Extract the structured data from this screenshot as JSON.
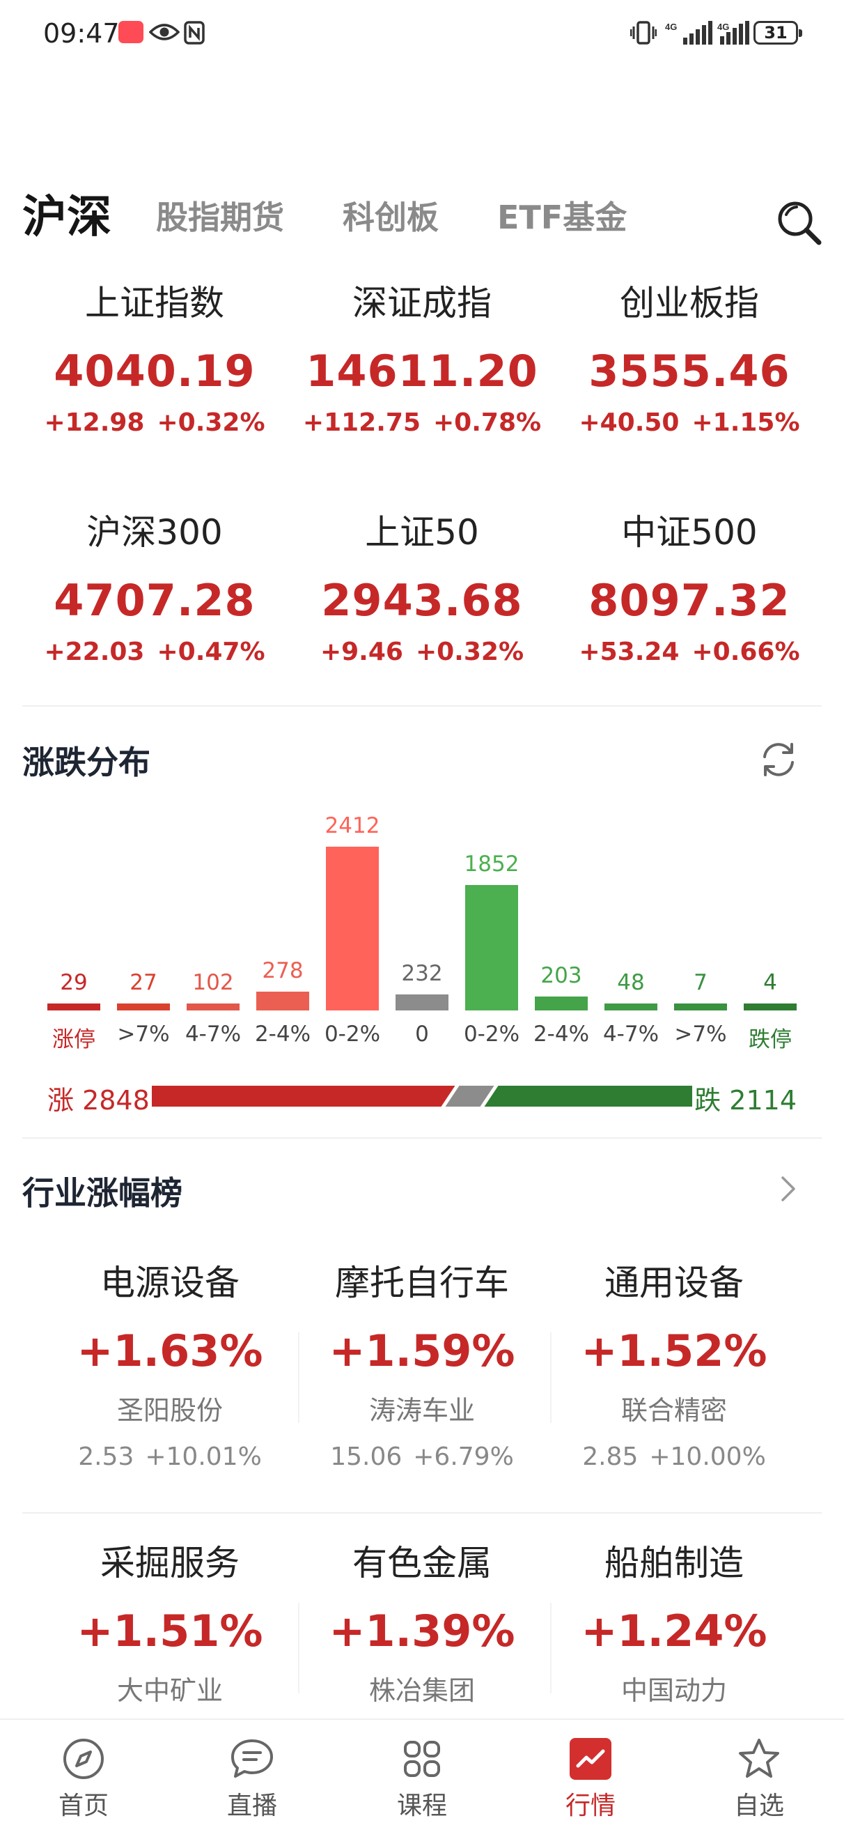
{
  "status_bar": {
    "time": "09:47",
    "battery": "31"
  },
  "tabs": [
    {
      "label": "沪深",
      "active": true
    },
    {
      "label": "股指期货"
    },
    {
      "label": "科创板"
    },
    {
      "label": "ETF基金"
    }
  ],
  "indices": [
    {
      "name": "上证指数",
      "value": "4040.19",
      "change": "+12.98",
      "pct": "+0.32%"
    },
    {
      "name": "深证成指",
      "value": "14611.20",
      "change": "+112.75",
      "pct": "+0.78%"
    },
    {
      "name": "创业板指",
      "value": "3555.46",
      "change": "+40.50",
      "pct": "+1.15%"
    },
    {
      "name": "沪深300",
      "value": "4707.28",
      "change": "+22.03",
      "pct": "+0.47%"
    },
    {
      "name": "上证50",
      "value": "2943.68",
      "change": "+9.46",
      "pct": "+0.32%"
    },
    {
      "name": "中证500",
      "value": "8097.32",
      "change": "+53.24",
      "pct": "+0.66%"
    }
  ],
  "distribution": {
    "title": "涨跌分布",
    "up_label": "涨 2848",
    "down_label": "跌 2114",
    "up_total": 2848,
    "down_total": 2114,
    "flat_total": 232
  },
  "chart_data": {
    "type": "bar",
    "categories": [
      "涨停",
      ">7%",
      "4-7%",
      "2-4%",
      "0-2%",
      "0",
      "0-2%",
      "2-4%",
      "4-7%",
      ">7%",
      "跌停"
    ],
    "values": [
      29,
      27,
      102,
      278,
      2412,
      232,
      1852,
      203,
      48,
      7,
      4
    ],
    "bar_colors": [
      "#c62828",
      "#d9412f",
      "#e2574a",
      "#eb5f52",
      "#ff6359",
      "#8c8c8c",
      "#4caf50",
      "#45a44a",
      "#3f9b45",
      "#3a9140",
      "#2e7d32"
    ],
    "label_colors": [
      "#c62828",
      "#444444",
      "#444444",
      "#444444",
      "#444444",
      "#444444",
      "#444444",
      "#444444",
      "#444444",
      "#444444",
      "#2e7d32"
    ]
  },
  "industry": {
    "title": "行业涨幅榜",
    "items": [
      {
        "name": "电源设备",
        "pct": "+1.63%",
        "stock": "圣阳股份",
        "price": "2.53",
        "stock_pct": "+10.01%"
      },
      {
        "name": "摩托自行车",
        "pct": "+1.59%",
        "stock": "涛涛车业",
        "price": "15.06",
        "stock_pct": "+6.79%"
      },
      {
        "name": "通用设备",
        "pct": "+1.52%",
        "stock": "联合精密",
        "price": "2.85",
        "stock_pct": "+10.00%"
      },
      {
        "name": "采掘服务",
        "pct": "+1.51%",
        "stock": "大中矿业"
      },
      {
        "name": "有色金属",
        "pct": "+1.39%",
        "stock": "株冶集团"
      },
      {
        "name": "船舶制造",
        "pct": "+1.24%",
        "stock": "中国动力"
      }
    ]
  },
  "bottom_nav": [
    {
      "label": "首页",
      "icon": "compass-icon"
    },
    {
      "label": "直播",
      "icon": "chat-icon"
    },
    {
      "label": "课程",
      "icon": "grid-icon"
    },
    {
      "label": "行情",
      "icon": "trend-icon",
      "active": true
    },
    {
      "label": "自选",
      "icon": "star-icon"
    }
  ],
  "colors": {
    "up": "#c62828",
    "down": "#2e7d32",
    "flat": "#8c8c8c",
    "accent": "#d32f2f"
  }
}
